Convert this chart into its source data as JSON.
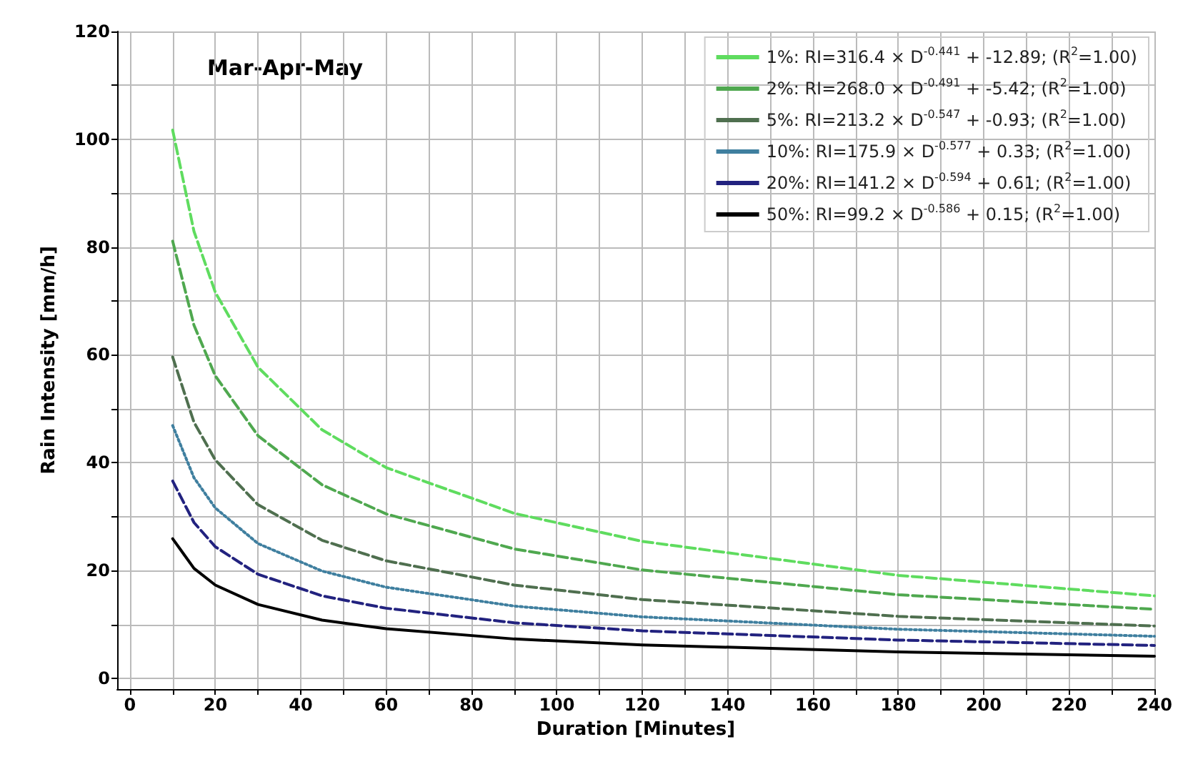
{
  "chart_data": {
    "type": "line",
    "xlabel": "Duration [Minutes]",
    "ylabel": "Rain Intensity [mm/h]",
    "annotations": [
      "Mar-Apr-May"
    ],
    "x": [
      10,
      15,
      20,
      30,
      45,
      60,
      90,
      120,
      180,
      240
    ],
    "series": [
      {
        "name": "1%: RI=316.4 × D$^{-0.441}$ + -12.89; (R$^{2}$=1.00)",
        "color": "#5fdc5f",
        "line_style": "dashed",
        "values": [
          101.7,
          82.9,
          71.6,
          57.7,
          46.1,
          39.1,
          30.6,
          25.4,
          19.1,
          15.3
        ]
      },
      {
        "name": "2%: RI=268.0 × D$^{-0.491}$ + -5.42; (R$^{2}$=1.00)",
        "color": "#4fa84f",
        "line_style": "dashed",
        "values": [
          81.1,
          65.5,
          56.1,
          45.0,
          35.9,
          30.5,
          24.0,
          20.1,
          15.5,
          12.8
        ]
      },
      {
        "name": "5%: RI=213.2 × D$^{-0.547}$ + -0.93; (R$^{2}$=1.00)",
        "color": "#4f6f4f",
        "line_style": "dashed",
        "values": [
          59.6,
          47.5,
          40.5,
          32.2,
          25.6,
          21.8,
          17.3,
          14.6,
          11.5,
          9.7
        ]
      },
      {
        "name": "10%: RI=175.9 × D$^{-0.577}$ + 0.33; (R$^{2}$=1.00)",
        "color": "#3f7f9f",
        "line_style": "dotted",
        "values": [
          46.9,
          37.2,
          31.6,
          25.0,
          19.9,
          16.9,
          13.4,
          11.4,
          9.1,
          7.8
        ]
      },
      {
        "name": "20%: RI=141.2 × D$^{-0.594}$ + 0.61; (R$^{2}$=1.00)",
        "color": "#22227f",
        "line_style": "dashed",
        "values": [
          36.6,
          28.9,
          24.4,
          19.3,
          15.3,
          13.0,
          10.3,
          8.8,
          7.1,
          6.1
        ]
      },
      {
        "name": "50%: RI=99.2 × D$^{-0.586}$ + 0.15; (R$^{2}$=1.00)",
        "color": "#000000",
        "line_style": "solid",
        "values": [
          25.9,
          20.4,
          17.3,
          13.7,
          10.8,
          9.2,
          7.3,
          6.2,
          4.9,
          4.1
        ]
      }
    ],
    "xlim": [
      -3,
      240
    ],
    "xticks": [
      0,
      {
        "value": 10,
        "label": null
      },
      20,
      {
        "value": 30,
        "label": null
      },
      40,
      {
        "value": 50,
        "label": null
      },
      60,
      {
        "value": 70,
        "label": null
      },
      80,
      {
        "value": 90,
        "label": null
      },
      100,
      {
        "value": 110,
        "label": null
      },
      120,
      {
        "value": 130,
        "label": null
      },
      140,
      {
        "value": 150,
        "label": null
      },
      160,
      {
        "value": 170,
        "label": null
      },
      180,
      {
        "value": 190,
        "label": null
      },
      200,
      {
        "value": 210,
        "label": null
      },
      220,
      {
        "value": 230,
        "label": null
      },
      240
    ],
    "ylim": [
      -2,
      120
    ],
    "yticks": [
      0,
      {
        "value": 10,
        "label": null
      },
      20,
      {
        "value": 30,
        "label": null
      },
      40,
      {
        "value": 50,
        "label": null
      },
      60,
      {
        "value": 70,
        "label": null
      },
      80,
      {
        "value": 90,
        "label": null
      },
      100,
      {
        "value": 110,
        "label": null
      },
      120
    ],
    "grid": true,
    "legend": "top right",
    "marker": "none"
  }
}
